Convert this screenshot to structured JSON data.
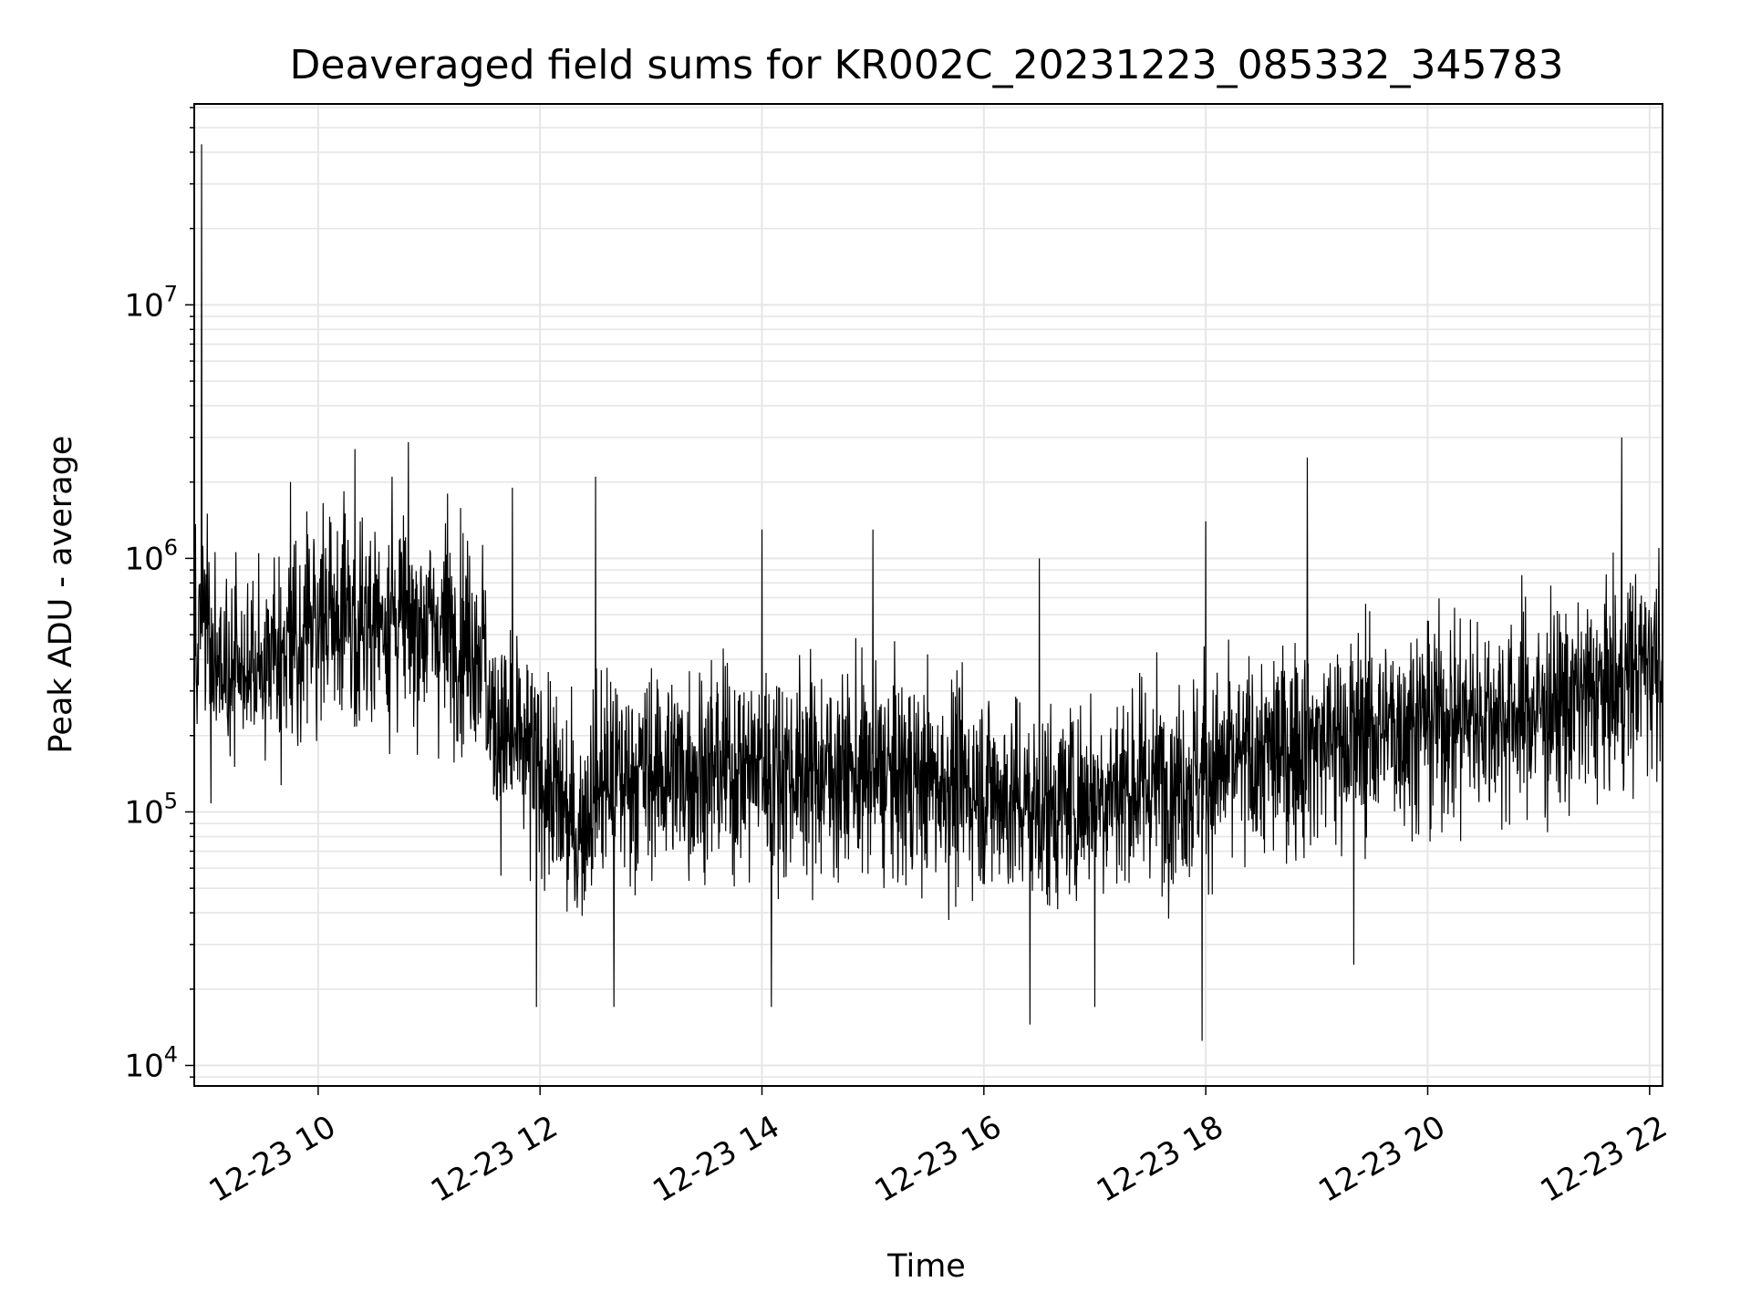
{
  "chart_data": {
    "type": "line",
    "title": "Deaveraged field sums for KR002C_20231223_085332_345783",
    "xlabel": "Time",
    "ylabel": "Peak ADU - average",
    "yscale": "log",
    "grid": true,
    "line_color": "#000000",
    "grid_color": "#e6e6e6",
    "xlim": [
      "2023-12-23 08:53",
      "2023-12-23 22:07"
    ],
    "ylim": [
      8300,
      62000000
    ],
    "xticks": [
      {
        "value": "2023-12-23 10:00",
        "label": "12-23 10"
      },
      {
        "value": "2023-12-23 12:00",
        "label": "12-23 12"
      },
      {
        "value": "2023-12-23 14:00",
        "label": "12-23 14"
      },
      {
        "value": "2023-12-23 16:00",
        "label": "12-23 16"
      },
      {
        "value": "2023-12-23 18:00",
        "label": "12-23 18"
      },
      {
        "value": "2023-12-23 20:00",
        "label": "12-23 20"
      },
      {
        "value": "2023-12-23 22:00",
        "label": "12-23 22"
      }
    ],
    "yticks": [
      {
        "value": 10000,
        "base": "10",
        "exp": "4"
      },
      {
        "value": 100000,
        "base": "10",
        "exp": "5"
      },
      {
        "value": 1000000,
        "base": "10",
        "exp": "6"
      },
      {
        "value": 10000000,
        "base": "10",
        "exp": "7"
      }
    ],
    "series": [
      {
        "trend": [
          {
            "x": "2023-12-23 08:53",
            "y": 500000
          },
          {
            "x": "2023-12-23 09:10",
            "y": 330000
          },
          {
            "x": "2023-12-23 09:30",
            "y": 400000
          },
          {
            "x": "2023-12-23 10:00",
            "y": 550000
          },
          {
            "x": "2023-12-23 10:30",
            "y": 600000
          },
          {
            "x": "2023-12-23 11:00",
            "y": 550000
          },
          {
            "x": "2023-12-23 11:30",
            "y": 460000
          },
          {
            "x": "2023-12-23 11:32",
            "y": 230000
          },
          {
            "x": "2023-12-23 12:00",
            "y": 150000
          },
          {
            "x": "2023-12-23 12:20",
            "y": 80000
          },
          {
            "x": "2023-12-23 12:30",
            "y": 130000
          },
          {
            "x": "2023-12-23 13:00",
            "y": 145000
          },
          {
            "x": "2023-12-23 14:00",
            "y": 150000
          },
          {
            "x": "2023-12-23 15:00",
            "y": 140000
          },
          {
            "x": "2023-12-23 16:00",
            "y": 125000
          },
          {
            "x": "2023-12-23 16:30",
            "y": 100000
          },
          {
            "x": "2023-12-23 17:00",
            "y": 120000
          },
          {
            "x": "2023-12-23 18:00",
            "y": 140000
          },
          {
            "x": "2023-12-23 19:00",
            "y": 190000
          },
          {
            "x": "2023-12-23 20:00",
            "y": 230000
          },
          {
            "x": "2023-12-23 21:00",
            "y": 250000
          },
          {
            "x": "2023-12-23 21:40",
            "y": 300000
          },
          {
            "x": "2023-12-23 22:07",
            "y": 450000
          }
        ],
        "spikes": [
          {
            "x": "2023-12-23 08:57",
            "y": 43000000
          },
          {
            "x": "2023-12-23 09:00",
            "y": 1500000
          },
          {
            "x": "2023-12-23 09:45",
            "y": 2000000
          },
          {
            "x": "2023-12-23 10:20",
            "y": 2700000
          },
          {
            "x": "2023-12-23 10:40",
            "y": 2100000
          },
          {
            "x": "2023-12-23 11:10",
            "y": 1800000
          },
          {
            "x": "2023-12-23 11:45",
            "y": 1900000
          },
          {
            "x": "2023-12-23 12:30",
            "y": 2100000
          },
          {
            "x": "2023-12-23 14:00",
            "y": 1300000
          },
          {
            "x": "2023-12-23 15:00",
            "y": 1300000
          },
          {
            "x": "2023-12-23 16:30",
            "y": 1000000
          },
          {
            "x": "2023-12-23 18:00",
            "y": 1400000
          },
          {
            "x": "2023-12-23 18:55",
            "y": 2500000
          },
          {
            "x": "2023-12-23 21:45",
            "y": 3000000
          },
          {
            "x": "2023-12-23 22:05",
            "y": 1100000
          },
          {
            "x": "2023-12-23 11:58",
            "y": 17000
          },
          {
            "x": "2023-12-23 12:40",
            "y": 17000
          },
          {
            "x": "2023-12-23 14:05",
            "y": 17000
          },
          {
            "x": "2023-12-23 16:25",
            "y": 14500
          },
          {
            "x": "2023-12-23 17:00",
            "y": 17000
          },
          {
            "x": "2023-12-23 17:58",
            "y": 12500
          },
          {
            "x": "2023-12-23 19:20",
            "y": 25000
          }
        ]
      }
    ]
  }
}
